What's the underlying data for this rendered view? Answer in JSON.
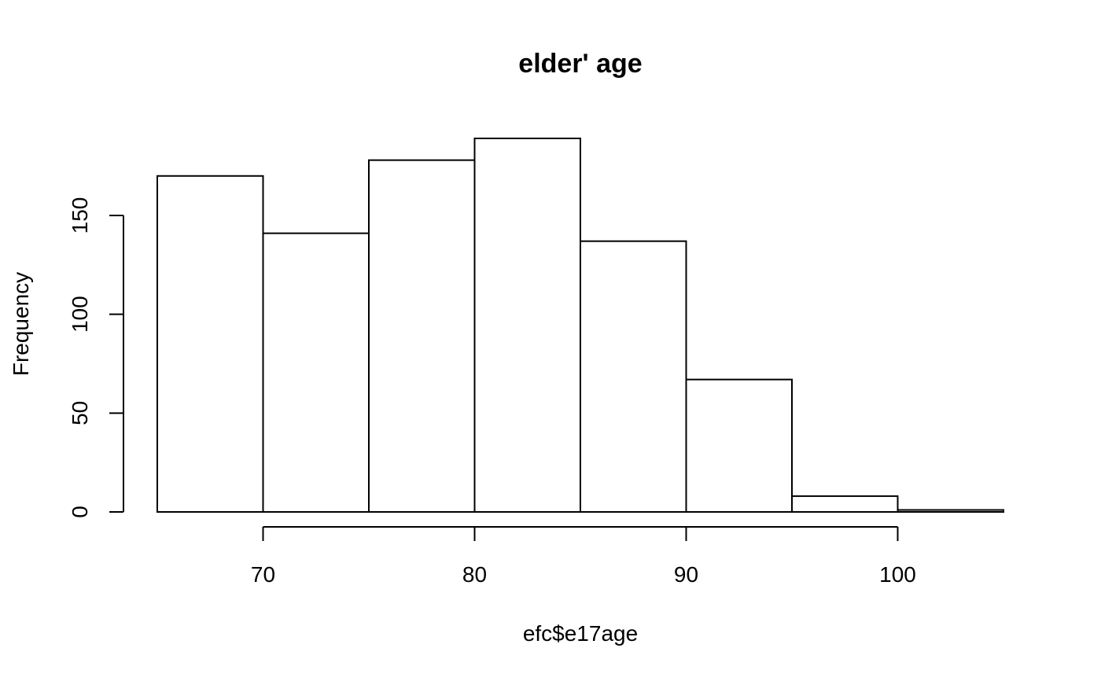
{
  "chart_data": {
    "type": "histogram",
    "title": "elder' age",
    "xlabel": "efc$e17age",
    "ylabel": "Frequency",
    "bins": [
      {
        "from": 65,
        "to": 70,
        "count": 170
      },
      {
        "from": 70,
        "to": 75,
        "count": 141
      },
      {
        "from": 75,
        "to": 80,
        "count": 178
      },
      {
        "from": 80,
        "to": 85,
        "count": 189
      },
      {
        "from": 85,
        "to": 90,
        "count": 137
      },
      {
        "from": 90,
        "to": 95,
        "count": 67
      },
      {
        "from": 95,
        "to": 100,
        "count": 8
      },
      {
        "from": 100,
        "to": 105,
        "count": 1
      }
    ],
    "xlim": [
      65,
      105
    ],
    "ylim": [
      0,
      189
    ],
    "x_ticks": [
      70,
      80,
      90,
      100
    ],
    "y_ticks": [
      0,
      50,
      100,
      150
    ],
    "x_axis_range": [
      70,
      100
    ],
    "y_axis_range": [
      0,
      150
    ],
    "grid": false,
    "colors": {
      "bar_fill": "#ffffff",
      "bar_stroke": "#000000"
    }
  }
}
